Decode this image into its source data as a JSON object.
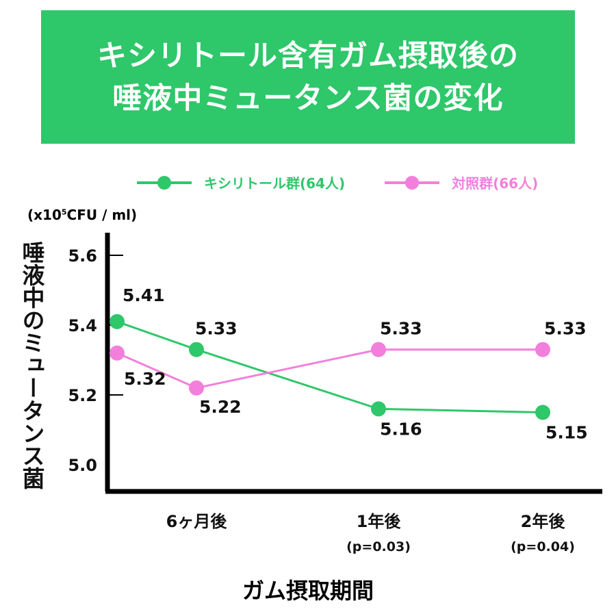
{
  "title": {
    "line1": "キシリトール含有ガム摂取後の",
    "line2": "唾液中ミュータンス菌の変化"
  },
  "chart_data": {
    "type": "line",
    "title": "キシリトール含有ガム摂取後の唾液中ミュータンス菌の変化",
    "xlabel": "ガム摂取期間",
    "ylabel": "唾液中のミュータンス菌",
    "unit_prefix": "(x10",
    "unit_exp": "5",
    "unit_suffix": "CFU / ml)",
    "ylim": [
      4.92,
      5.66
    ],
    "yticks": [
      "5.0",
      "5.2",
      "5.4",
      "5.6"
    ],
    "categories": [
      "",
      "6ヶ月後",
      "1年後",
      "2年後"
    ],
    "category_notes": [
      "",
      "",
      "(p=0.03)",
      "(p=0.04)"
    ],
    "series": [
      {
        "name": "キシリトール群(64人)",
        "color": "#2ec76a",
        "values": [
          5.41,
          5.33,
          5.16,
          5.15
        ],
        "labels": [
          "5.41",
          "5.33",
          "5.16",
          "5.15"
        ]
      },
      {
        "name": "対照群(66人)",
        "color": "#f27fdc",
        "values": [
          5.32,
          5.22,
          5.33,
          5.33
        ],
        "labels": [
          "5.32",
          "5.22",
          "5.33",
          "5.33"
        ]
      }
    ],
    "legend": "top",
    "grid": false
  }
}
